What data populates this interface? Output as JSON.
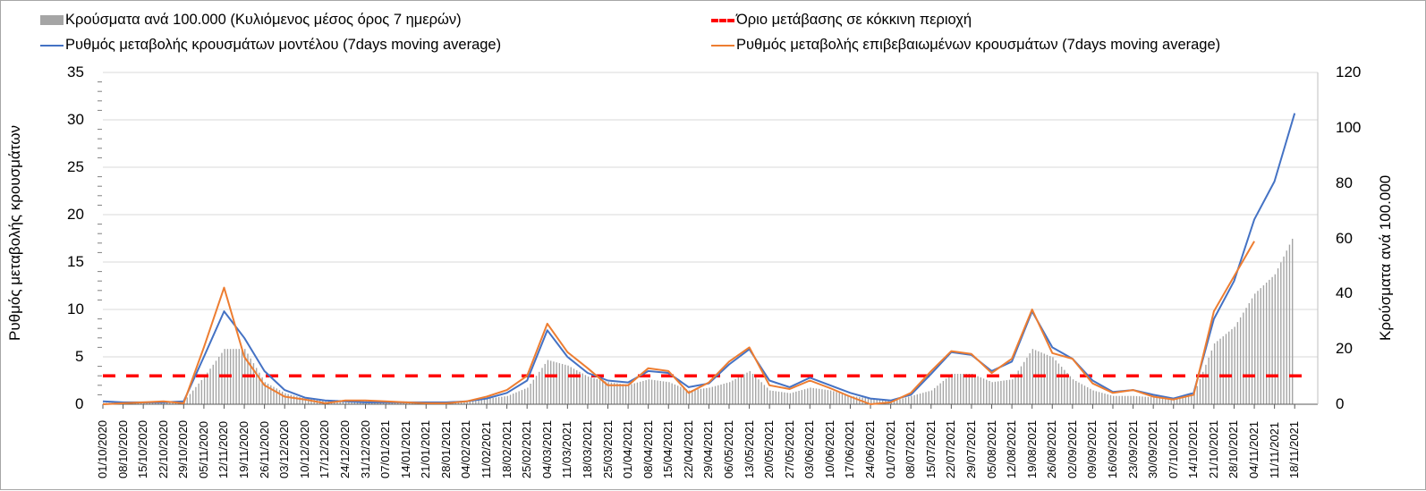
{
  "legend": {
    "bars": "Κρούσματα ανά 100.000 (Κυλιόμενος μέσος όρος 7 ημερών)",
    "threshold": "Όριο μετάβασης σε κόκκινη περιοχή",
    "model": "Ρυθμός μεταβολής κρουσμάτων μοντέλου (7days moving average)",
    "confirmed": "Ρυθμός μεταβολής επιβεβαιωμένων κρουσμάτων (7days moving average)"
  },
  "colors": {
    "bars": "#a5a5a5",
    "threshold": "#ff0000",
    "model": "#4472c4",
    "confirmed": "#ed7d31",
    "grid": "#d9d9d9"
  },
  "axes": {
    "left_title": "Ρυθμός μεταβολής κρουσμάτων",
    "right_title": "Κρούσματα ανά 100.000",
    "left_ticks": [
      "35",
      "30",
      "25",
      "20",
      "15",
      "10",
      "5",
      "0"
    ],
    "right_ticks": [
      "120",
      "100",
      "80",
      "60",
      "40",
      "20",
      "0"
    ]
  },
  "chart_data": {
    "type": "bar+line",
    "title": "",
    "xlabel": "",
    "ylabel": "Ρυθμός μεταβολής κρουσμάτων",
    "ylabel_right": "Κρούσματα ανά 100.000",
    "ylim": [
      0,
      35
    ],
    "ylim_right": [
      0,
      120
    ],
    "grid": true,
    "legend_position": "top",
    "categories": [
      "01/10/2020",
      "08/10/2020",
      "15/10/2020",
      "22/10/2020",
      "29/10/2020",
      "05/11/2020",
      "12/11/2020",
      "19/11/2020",
      "26/11/2020",
      "03/12/2020",
      "10/12/2020",
      "17/12/2020",
      "24/12/2020",
      "31/12/2020",
      "07/01/2021",
      "14/01/2021",
      "21/01/2021",
      "28/01/2021",
      "04/02/2021",
      "11/02/2021",
      "18/02/2021",
      "25/02/2021",
      "04/03/2021",
      "11/03/2021",
      "18/03/2021",
      "25/03/2021",
      "01/04/2021",
      "08/04/2021",
      "15/04/2021",
      "22/04/2021",
      "29/04/2021",
      "06/05/2021",
      "13/05/2021",
      "20/05/2021",
      "27/05/2021",
      "03/06/2021",
      "10/06/2021",
      "17/06/2021",
      "24/06/2021",
      "01/07/2021",
      "08/07/2021",
      "15/07/2021",
      "22/07/2021",
      "29/07/2021",
      "05/08/2021",
      "12/08/2021",
      "19/08/2021",
      "26/08/2021",
      "02/09/2021",
      "09/09/2021",
      "16/09/2021",
      "23/09/2021",
      "30/09/2021",
      "07/10/2021",
      "14/10/2021",
      "21/10/2021",
      "28/10/2021",
      "04/11/2021",
      "11/11/2021",
      "18/11/2021"
    ],
    "series": [
      {
        "name": "Κρούσματα ανά 100.000 (Κυλιόμενος μέσος όρος 7 ημερών)",
        "type": "bar",
        "axis": "right",
        "values": [
          0.5,
          0.6,
          0.7,
          0.9,
          1.2,
          10,
          20,
          20,
          8,
          4,
          2,
          1.5,
          1.5,
          1.5,
          1.2,
          1,
          0.8,
          0.8,
          1,
          2,
          3,
          6,
          16,
          14,
          10,
          8,
          7,
          9,
          8,
          5,
          6,
          8,
          12,
          5,
          4,
          6,
          5,
          3,
          2,
          1,
          3,
          5,
          11,
          11,
          8,
          9,
          20,
          17,
          9,
          5,
          3,
          3,
          2.5,
          2,
          4,
          22,
          28,
          40,
          47,
          62
        ]
      },
      {
        "name": "Ρυθμός μεταβολής κρουσμάτων μοντέλου (7days moving average)",
        "type": "line",
        "axis": "left",
        "values": [
          0.3,
          0.2,
          0.2,
          0.2,
          0.3,
          5,
          9.8,
          7,
          3.5,
          1.5,
          0.7,
          0.4,
          0.3,
          0.2,
          0.2,
          0.2,
          0.2,
          0.2,
          0.3,
          0.6,
          1.2,
          2.5,
          7.8,
          5,
          3.3,
          2.5,
          2.3,
          3.5,
          3.3,
          1.8,
          2.2,
          4.2,
          5.8,
          2.5,
          1.8,
          2.8,
          2,
          1.2,
          0.6,
          0.4,
          1,
          3.2,
          5.5,
          5.2,
          3.5,
          4.5,
          9.8,
          6,
          4.8,
          2.5,
          1.3,
          1.5,
          1,
          0.6,
          1.2,
          9,
          13,
          19.5,
          23.5,
          30.7
        ]
      },
      {
        "name": "Ρυθμός μεταβολής επιβεβαιωμένων κρουσμάτων (7days moving average)",
        "type": "line",
        "axis": "left",
        "values": [
          0,
          0.1,
          0.2,
          0.3,
          0.1,
          6,
          12.3,
          5,
          2,
          0.8,
          0.5,
          0.1,
          0.4,
          0.4,
          0.3,
          0.2,
          0.1,
          0.1,
          0.3,
          0.8,
          1.5,
          3,
          8.5,
          5.5,
          3.8,
          2,
          2,
          3.8,
          3.5,
          1.2,
          2.3,
          4.5,
          6,
          2,
          1.6,
          2.5,
          1.7,
          0.8,
          0,
          0.2,
          1.2,
          3.5,
          5.6,
          5.3,
          3.3,
          4.8,
          10,
          5.4,
          4.8,
          2.2,
          1.2,
          1.5,
          0.8,
          0.5,
          1,
          9.8,
          13.5,
          17.2,
          null,
          null
        ]
      },
      {
        "name": "Όριο μετάβασης σε κόκκινη περιοχή",
        "type": "line",
        "axis": "left",
        "style": "dashed",
        "values": [
          3,
          3,
          3,
          3,
          3,
          3,
          3,
          3,
          3,
          3,
          3,
          3,
          3,
          3,
          3,
          3,
          3,
          3,
          3,
          3,
          3,
          3,
          3,
          3,
          3,
          3,
          3,
          3,
          3,
          3,
          3,
          3,
          3,
          3,
          3,
          3,
          3,
          3,
          3,
          3,
          3,
          3,
          3,
          3,
          3,
          3,
          3,
          3,
          3,
          3,
          3,
          3,
          3,
          3,
          3,
          3,
          3,
          3,
          3,
          3
        ]
      }
    ]
  }
}
